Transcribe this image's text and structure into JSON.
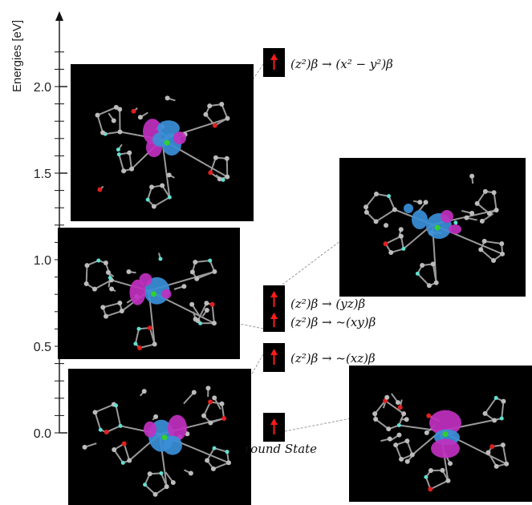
{
  "axis": {
    "label": "Energies [eV]",
    "ticks": [
      "0.0",
      "0.5",
      "1.0",
      "1.5",
      "2.0"
    ],
    "ylim": [
      0,
      2.0
    ]
  },
  "states": [
    {
      "id": "ground",
      "energy": 0.0,
      "label": "round State"
    },
    {
      "id": "z2-xz",
      "energy": 0.42,
      "label": "(z²)β → ~(xz)β"
    },
    {
      "id": "z2-xy",
      "energy": 0.62,
      "label": "(z²)β → ~(xy)β"
    },
    {
      "id": "z2-yz",
      "energy": 0.73,
      "label": "(z²)β → (yz)β"
    },
    {
      "id": "z2-x2y2",
      "energy": 2.05,
      "label": "(z²)β → (x² − y²)β"
    }
  ],
  "colors": {
    "arrow": "#ff1a1a",
    "lobe_blue": "#3a8fd8",
    "lobe_magenta": "#c030c0",
    "atom_grey": "#bcbcbc",
    "atom_red": "#e02020",
    "atom_cyan": "#60e0d0",
    "atom_green": "#30d030",
    "connector": "#9a9a9a"
  },
  "icons": {
    "marker": "red-up-arrow-icon",
    "panel": "molecule-orbital-render"
  }
}
